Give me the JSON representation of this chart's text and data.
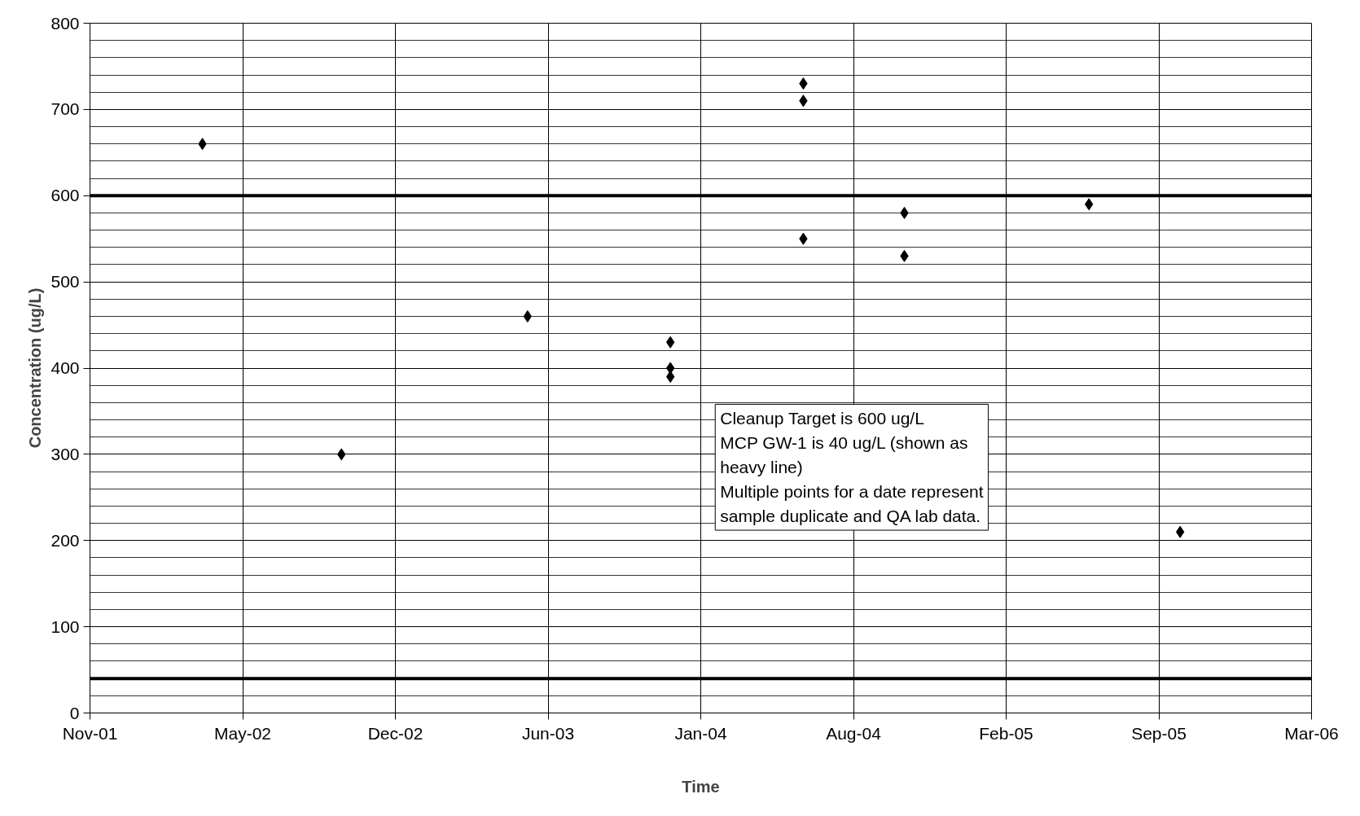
{
  "chart_data": {
    "type": "scatter",
    "xlabel": "Time",
    "ylabel": "Concentration (ug/L)",
    "x": [
      "2002-03-29",
      "2002-09-28",
      "2003-05-31",
      "2003-12-05",
      "2003-12-05",
      "2003-12-05",
      "2004-05-28",
      "2004-05-28",
      "2004-05-28",
      "2004-10-08",
      "2004-10-08",
      "2005-06-08",
      "2005-10-06"
    ],
    "values": [
      660,
      300,
      460,
      430,
      400,
      390,
      730,
      710,
      550,
      580,
      530,
      590,
      210
    ],
    "color": "#000000",
    "marker": "diamond",
    "xlim": [
      "2001-11-01",
      "2006-03-28"
    ],
    "xticks": [
      {
        "value": "2001-11-01",
        "label": "Nov-01"
      },
      {
        "value": "2002-05-21",
        "label": "May-02"
      },
      {
        "value": "2002-12-08",
        "label": "Dec-02"
      },
      {
        "value": "2003-06-27",
        "label": "Jun-03"
      },
      {
        "value": "2004-01-14",
        "label": "Jan-04"
      },
      {
        "value": "2004-08-02",
        "label": "Aug-04"
      },
      {
        "value": "2005-02-19",
        "label": "Feb-05"
      },
      {
        "value": "2005-09-08",
        "label": "Sep-05"
      },
      {
        "value": "2006-03-28",
        "label": "Mar-06"
      }
    ],
    "ylim": [
      0,
      800
    ],
    "yticks": [
      0,
      100,
      200,
      300,
      400,
      500,
      600,
      700,
      800
    ],
    "grid": true,
    "ref_lines": [
      {
        "axis": "y",
        "value": 600,
        "color": "#000000"
      },
      {
        "axis": "y",
        "value": 40,
        "color": "#000000"
      }
    ],
    "annotations": [
      "Cleanup Target is 600 ug/L\nMCP GW-1 is 40 ug/L  (shown as\nheavy line)\nMultiple points for a date represent\nsample duplicate and QA lab data."
    ]
  }
}
